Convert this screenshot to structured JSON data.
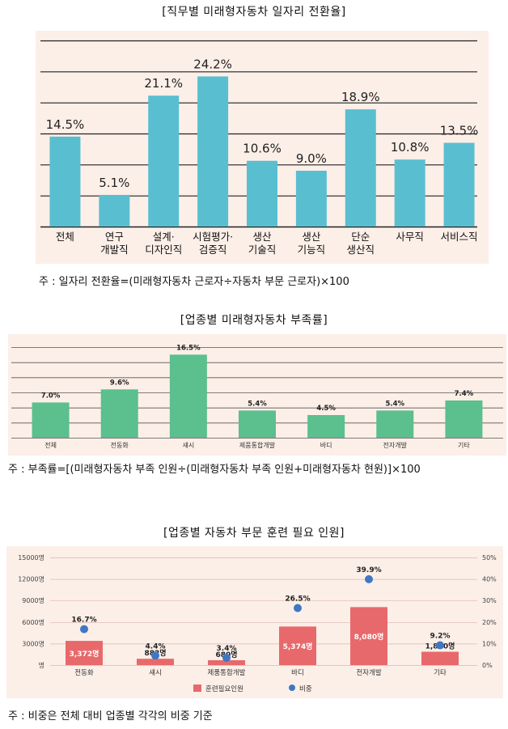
{
  "chart_data": [
    {
      "type": "bar",
      "title": "[직무별 미래형자동차 일자리 전환율]",
      "categories": [
        "전체",
        "연구\n개발직",
        "설계·\n디자인직",
        "시험평가·\n검증직",
        "생산\n기술직",
        "생산\n기능직",
        "단순\n생산직",
        "사무직",
        "서비스직"
      ],
      "values": [
        14.5,
        5.1,
        21.1,
        24.2,
        10.6,
        9.0,
        18.9,
        10.8,
        13.5
      ],
      "value_labels": [
        "14.5%",
        "5.1%",
        "21.1%",
        "24.2%",
        "10.6%",
        "9.0%",
        "18.9%",
        "10.8%",
        "13.5%"
      ],
      "ylim": [
        0,
        30
      ],
      "grid": true,
      "colors": {
        "bar": "#59bfd0",
        "background": "#fcefe8",
        "grid": "#222222"
      },
      "note": "주 : 일자리 전환율=(미래형자동차 근로자÷자동차 부문 근로자)×100"
    },
    {
      "type": "bar",
      "title": "[업종별 미래형자동차 부족률]",
      "categories": [
        "전체",
        "전동화",
        "섀시",
        "제품통합개발",
        "바디",
        "전자개발",
        "기타"
      ],
      "values": [
        7.0,
        9.6,
        16.5,
        5.4,
        4.5,
        5.4,
        7.4
      ],
      "value_labels": [
        "7.0%",
        "9.6%",
        "16.5%",
        "5.4%",
        "4.5%",
        "5.4%",
        "7.4%"
      ],
      "ylim": [
        0,
        18
      ],
      "grid": true,
      "colors": {
        "bar": "#5bbf8e",
        "background": "#fcefe8",
        "grid": "#555555"
      },
      "note": "주 : 부족률=[(미래형자동차 부족 인원÷(미래형자동차 부족 인원+미래형자동차 현원)]×100"
    },
    {
      "type": "bar",
      "title": "[업종별 자동차 부문 훈련 필요 인원]",
      "categories": [
        "전동화",
        "섀시",
        "제품통합개발",
        "바디",
        "전자개발",
        "기타"
      ],
      "series": [
        {
          "name": "훈련필요인원",
          "type": "bar",
          "axis": "left",
          "values": [
            3372,
            882,
            680,
            5374,
            8080,
            1860
          ],
          "labels": [
            "3,372명",
            "882명",
            "680명",
            "5,374명",
            "8,080명",
            "1,860명"
          ]
        },
        {
          "name": "비중",
          "type": "scatter",
          "axis": "right",
          "values": [
            16.7,
            4.4,
            3.4,
            26.5,
            39.9,
            9.2
          ],
          "labels": [
            "16.7%",
            "4.4%",
            "3.4%",
            "26.5%",
            "39.9%",
            "9.2%"
          ]
        }
      ],
      "ylim": [
        0,
        15000
      ],
      "y2lim": [
        0,
        50
      ],
      "y_ticks": [
        "명",
        "3000명",
        "6000명",
        "9000명",
        "12000명",
        "15000명"
      ],
      "y2_ticks": [
        "0%",
        "10%",
        "20%",
        "30%",
        "40%",
        "50%"
      ],
      "legend": "bottom",
      "colors": {
        "bar": "#e8696b",
        "dot": "#3f77c5",
        "background": "#fcefe8",
        "grid": "#d8b8ad"
      },
      "note": "주 : 비중은 전체 대비 업종별 각각의 비중 기준"
    }
  ]
}
